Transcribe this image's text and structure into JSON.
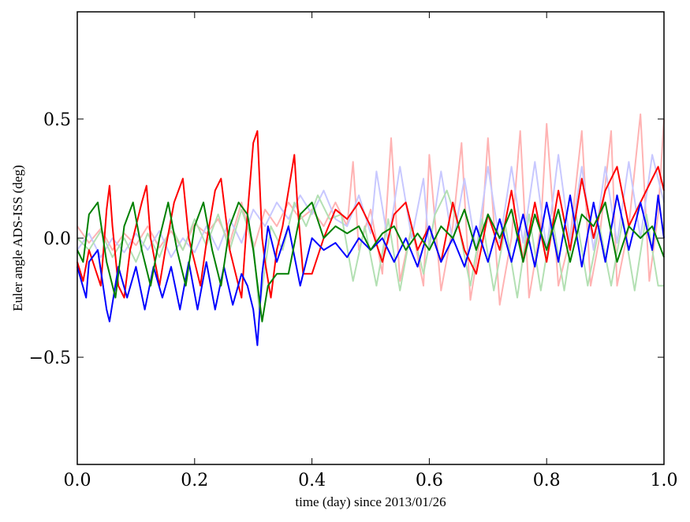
{
  "chart_data": {
    "type": "line",
    "xlabel": "time (day) since 2013/01/26",
    "ylabel": "Euler angle ADS-ISS (deg)",
    "xlim": [
      0.0,
      1.0
    ],
    "ylim": [
      -0.95,
      0.95
    ],
    "x_ticks": [
      0.0,
      0.2,
      0.4,
      0.6,
      0.8,
      1.0
    ],
    "x_tick_labels": [
      "0.0",
      "0.2",
      "0.4",
      "0.6",
      "0.8",
      "1.0"
    ],
    "y_ticks": [
      -0.5,
      0.0,
      0.5
    ],
    "y_tick_labels": [
      "−0.5",
      "0.0",
      "0.5"
    ],
    "grid": false,
    "legend": "none",
    "series": [
      {
        "color": "#ffb3b3",
        "x": [
          0.0,
          0.02,
          0.04,
          0.06,
          0.08,
          0.1,
          0.12,
          0.14,
          0.16,
          0.18,
          0.2,
          0.22,
          0.24,
          0.26,
          0.28,
          0.3,
          0.32,
          0.34,
          0.36,
          0.38,
          0.4,
          0.42,
          0.44,
          0.46,
          0.47,
          0.48,
          0.5,
          0.52,
          0.535,
          0.55,
          0.57,
          0.59,
          0.6,
          0.62,
          0.64,
          0.655,
          0.67,
          0.69,
          0.7,
          0.72,
          0.74,
          0.755,
          0.77,
          0.79,
          0.8,
          0.82,
          0.84,
          0.86,
          0.875,
          0.89,
          0.91,
          0.92,
          0.94,
          0.96,
          0.975,
          0.99,
          1.0
        ],
        "y": [
          0.05,
          -0.02,
          0.04,
          -0.05,
          0.02,
          -0.03,
          0.05,
          -0.04,
          0.03,
          -0.05,
          0.06,
          0.02,
          0.08,
          -0.02,
          0.15,
          -0.05,
          0.12,
          0.05,
          0.15,
          0.08,
          0.12,
          0.05,
          0.15,
          0.05,
          0.32,
          -0.05,
          0.12,
          -0.15,
          0.42,
          -0.18,
          0.05,
          -0.2,
          0.35,
          -0.22,
          0.05,
          0.4,
          -0.26,
          0.05,
          0.42,
          -0.28,
          0.0,
          0.45,
          -0.25,
          0.05,
          0.48,
          -0.2,
          0.0,
          0.45,
          -0.2,
          0.0,
          0.45,
          -0.2,
          0.05,
          0.52,
          -0.18,
          0.1,
          0.5
        ]
      },
      {
        "color": "#c8c8ff",
        "x": [
          0.0,
          0.02,
          0.04,
          0.06,
          0.08,
          0.1,
          0.12,
          0.14,
          0.16,
          0.18,
          0.2,
          0.22,
          0.24,
          0.26,
          0.28,
          0.3,
          0.32,
          0.34,
          0.36,
          0.38,
          0.4,
          0.42,
          0.44,
          0.46,
          0.48,
          0.5,
          0.51,
          0.53,
          0.55,
          0.57,
          0.59,
          0.6,
          0.62,
          0.64,
          0.66,
          0.68,
          0.7,
          0.72,
          0.74,
          0.76,
          0.78,
          0.8,
          0.82,
          0.84,
          0.86,
          0.88,
          0.9,
          0.92,
          0.94,
          0.96,
          0.98,
          1.0
        ],
        "y": [
          -0.05,
          0.02,
          -0.08,
          0.0,
          -0.06,
          0.02,
          -0.05,
          0.03,
          -0.08,
          0.0,
          -0.06,
          0.05,
          -0.05,
          0.08,
          -0.02,
          0.12,
          0.05,
          0.15,
          0.08,
          0.18,
          0.1,
          0.2,
          0.08,
          0.05,
          0.18,
          0.02,
          0.28,
          -0.02,
          0.3,
          0.0,
          0.25,
          -0.05,
          0.28,
          -0.02,
          0.25,
          -0.05,
          0.3,
          -0.02,
          0.3,
          -0.02,
          0.32,
          -0.05,
          0.35,
          -0.02,
          0.3,
          -0.05,
          0.3,
          -0.02,
          0.32,
          0.0,
          0.35,
          0.15
        ]
      },
      {
        "color": "#b3e0b3",
        "x": [
          0.0,
          0.02,
          0.04,
          0.06,
          0.08,
          0.1,
          0.12,
          0.14,
          0.16,
          0.18,
          0.2,
          0.22,
          0.24,
          0.26,
          0.28,
          0.3,
          0.31,
          0.33,
          0.35,
          0.37,
          0.39,
          0.41,
          0.43,
          0.45,
          0.47,
          0.49,
          0.51,
          0.53,
          0.55,
          0.57,
          0.59,
          0.61,
          0.63,
          0.65,
          0.67,
          0.69,
          0.71,
          0.73,
          0.75,
          0.77,
          0.79,
          0.81,
          0.83,
          0.85,
          0.87,
          0.89,
          0.91,
          0.93,
          0.95,
          0.97,
          0.99,
          1.0
        ],
        "y": [
          0.0,
          -0.05,
          0.03,
          -0.08,
          0.0,
          -0.1,
          0.02,
          -0.08,
          0.05,
          -0.05,
          0.08,
          -0.03,
          0.1,
          -0.05,
          0.12,
          -0.02,
          -0.3,
          0.05,
          -0.05,
          0.15,
          0.05,
          0.18,
          0.08,
          0.1,
          -0.18,
          0.05,
          -0.2,
          0.08,
          -0.22,
          0.05,
          -0.15,
          0.1,
          0.2,
          0.05,
          -0.2,
          0.08,
          -0.22,
          0.05,
          -0.25,
          0.1,
          -0.22,
          0.08,
          -0.22,
          0.1,
          -0.2,
          0.05,
          -0.2,
          0.08,
          -0.22,
          0.1,
          -0.2,
          -0.2
        ]
      },
      {
        "color": "#ff0000",
        "x": [
          0.0,
          0.01,
          0.02,
          0.04,
          0.05,
          0.055,
          0.06,
          0.07,
          0.08,
          0.09,
          0.11,
          0.118,
          0.125,
          0.14,
          0.15,
          0.165,
          0.18,
          0.19,
          0.21,
          0.22,
          0.235,
          0.245,
          0.26,
          0.28,
          0.29,
          0.3,
          0.307,
          0.315,
          0.32,
          0.33,
          0.34,
          0.35,
          0.37,
          0.375,
          0.385,
          0.4,
          0.42,
          0.44,
          0.46,
          0.48,
          0.5,
          0.52,
          0.54,
          0.56,
          0.58,
          0.6,
          0.62,
          0.64,
          0.66,
          0.68,
          0.7,
          0.72,
          0.74,
          0.76,
          0.78,
          0.8,
          0.82,
          0.84,
          0.86,
          0.88,
          0.9,
          0.92,
          0.94,
          0.96,
          0.98,
          0.99,
          1.0
        ],
        "y": [
          -0.1,
          -0.18,
          -0.05,
          -0.2,
          0.12,
          0.22,
          0.05,
          -0.2,
          -0.25,
          -0.05,
          0.15,
          0.22,
          0.0,
          -0.2,
          -0.05,
          0.15,
          0.25,
          0.0,
          -0.2,
          -0.02,
          0.2,
          0.25,
          -0.05,
          -0.25,
          0.1,
          0.4,
          0.45,
          0.0,
          -0.1,
          -0.25,
          -0.05,
          0.05,
          0.35,
          0.15,
          -0.15,
          -0.15,
          0.0,
          0.12,
          0.08,
          0.15,
          0.05,
          -0.1,
          0.1,
          0.15,
          -0.05,
          0.05,
          -0.1,
          0.15,
          -0.05,
          -0.15,
          0.1,
          -0.05,
          0.2,
          -0.1,
          0.15,
          -0.1,
          0.2,
          -0.05,
          0.25,
          0.0,
          0.2,
          0.3,
          0.05,
          0.15,
          0.25,
          0.3,
          0.2
        ]
      },
      {
        "color": "#0000ff",
        "x": [
          0.0,
          0.015,
          0.02,
          0.035,
          0.05,
          0.055,
          0.07,
          0.085,
          0.1,
          0.115,
          0.13,
          0.145,
          0.16,
          0.175,
          0.19,
          0.205,
          0.22,
          0.235,
          0.25,
          0.265,
          0.28,
          0.29,
          0.3,
          0.307,
          0.315,
          0.325,
          0.34,
          0.36,
          0.38,
          0.4,
          0.42,
          0.44,
          0.46,
          0.48,
          0.5,
          0.52,
          0.54,
          0.56,
          0.58,
          0.6,
          0.62,
          0.64,
          0.66,
          0.68,
          0.7,
          0.72,
          0.74,
          0.76,
          0.78,
          0.8,
          0.82,
          0.84,
          0.86,
          0.88,
          0.9,
          0.92,
          0.94,
          0.96,
          0.98,
          0.99,
          1.0
        ],
        "y": [
          -0.12,
          -0.25,
          -0.1,
          -0.05,
          -0.3,
          -0.35,
          -0.12,
          -0.25,
          -0.12,
          -0.3,
          -0.12,
          -0.25,
          -0.12,
          -0.3,
          -0.1,
          -0.3,
          -0.1,
          -0.3,
          -0.12,
          -0.28,
          -0.15,
          -0.2,
          -0.3,
          -0.45,
          -0.15,
          0.05,
          -0.1,
          0.05,
          -0.2,
          0.0,
          -0.05,
          -0.02,
          -0.08,
          0.0,
          -0.05,
          0.0,
          -0.1,
          0.0,
          -0.12,
          0.05,
          -0.1,
          0.0,
          -0.12,
          0.05,
          -0.1,
          0.08,
          -0.1,
          0.1,
          -0.12,
          0.15,
          -0.1,
          0.18,
          -0.12,
          0.15,
          -0.1,
          0.18,
          -0.05,
          0.15,
          -0.05,
          0.18,
          0.0
        ]
      },
      {
        "color": "#008000",
        "x": [
          0.0,
          0.01,
          0.02,
          0.035,
          0.05,
          0.065,
          0.08,
          0.095,
          0.11,
          0.125,
          0.14,
          0.155,
          0.17,
          0.185,
          0.2,
          0.215,
          0.23,
          0.245,
          0.26,
          0.275,
          0.29,
          0.3,
          0.31,
          0.315,
          0.325,
          0.34,
          0.36,
          0.38,
          0.4,
          0.42,
          0.44,
          0.46,
          0.48,
          0.5,
          0.52,
          0.54,
          0.56,
          0.58,
          0.6,
          0.62,
          0.64,
          0.66,
          0.68,
          0.7,
          0.72,
          0.74,
          0.76,
          0.78,
          0.8,
          0.82,
          0.84,
          0.86,
          0.88,
          0.9,
          0.92,
          0.94,
          0.96,
          0.98,
          1.0
        ],
        "y": [
          -0.05,
          -0.1,
          0.1,
          0.15,
          -0.1,
          -0.25,
          0.05,
          0.15,
          -0.05,
          -0.2,
          0.0,
          0.15,
          -0.05,
          -0.2,
          0.05,
          0.15,
          -0.05,
          -0.2,
          0.05,
          0.15,
          0.1,
          -0.05,
          -0.25,
          -0.35,
          -0.2,
          -0.15,
          -0.15,
          0.1,
          0.15,
          0.0,
          0.05,
          0.02,
          0.05,
          -0.05,
          0.02,
          0.05,
          -0.05,
          0.02,
          -0.05,
          0.05,
          0.0,
          0.12,
          -0.05,
          0.1,
          0.0,
          0.12,
          -0.1,
          0.1,
          -0.05,
          0.12,
          -0.1,
          0.1,
          0.05,
          0.15,
          -0.1,
          0.05,
          0.0,
          0.05,
          -0.08
        ]
      }
    ]
  }
}
